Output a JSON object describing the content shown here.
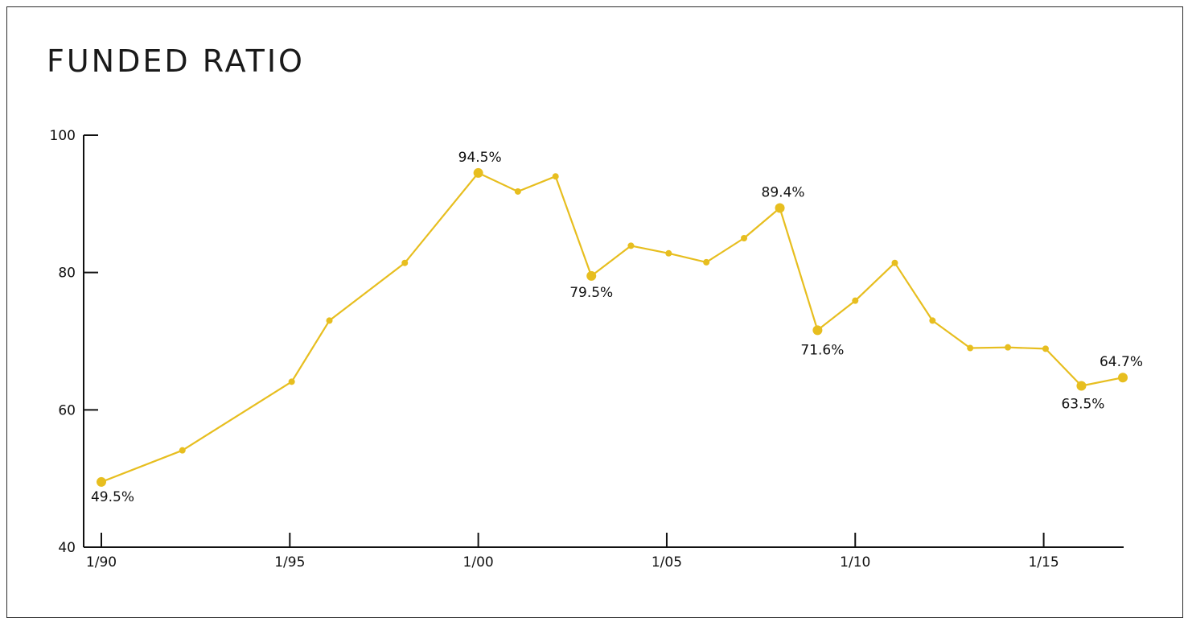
{
  "chart_data": {
    "type": "line",
    "title": "FUNDED RATIO",
    "xlabel": "",
    "ylabel": "",
    "ylim": [
      40,
      100
    ],
    "xlim": [
      1990,
      2017.3
    ],
    "y_ticks": [
      40,
      60,
      80,
      100
    ],
    "x_ticks": [
      {
        "x": 1990,
        "label": "1/90"
      },
      {
        "x": 1995,
        "label": "1/95"
      },
      {
        "x": 2000,
        "label": "1/00"
      },
      {
        "x": 2005,
        "label": "1/05"
      },
      {
        "x": 2010,
        "label": "1/10"
      },
      {
        "x": 2015,
        "label": "1/15"
      }
    ],
    "grid": false,
    "line_color": "#E7BE1F",
    "series": [
      {
        "points": [
          {
            "x": 1990.0,
            "y": 49.5,
            "label": "49.5%"
          },
          {
            "x": 1992.15,
            "y": 54.1
          },
          {
            "x": 1995.05,
            "y": 64.1
          },
          {
            "x": 1996.05,
            "y": 73.0
          },
          {
            "x": 1998.05,
            "y": 81.4
          },
          {
            "x": 2000.0,
            "y": 94.5,
            "label": "94.5%"
          },
          {
            "x": 2001.05,
            "y": 91.8
          },
          {
            "x": 2002.05,
            "y": 94.0
          },
          {
            "x": 2003.0,
            "y": 79.5,
            "label": "79.5%"
          },
          {
            "x": 2004.05,
            "y": 83.9
          },
          {
            "x": 2005.05,
            "y": 82.8
          },
          {
            "x": 2006.05,
            "y": 81.5
          },
          {
            "x": 2007.05,
            "y": 85.0
          },
          {
            "x": 2008.0,
            "y": 89.4,
            "label": "89.4%"
          },
          {
            "x": 2009.0,
            "y": 71.6,
            "label": "71.6%"
          },
          {
            "x": 2010.0,
            "y": 75.9
          },
          {
            "x": 2011.05,
            "y": 81.4
          },
          {
            "x": 2012.05,
            "y": 73.0
          },
          {
            "x": 2013.05,
            "y": 69.0
          },
          {
            "x": 2014.05,
            "y": 69.1
          },
          {
            "x": 2015.05,
            "y": 68.9
          },
          {
            "x": 2016.0,
            "y": 63.5,
            "label": "63.5%"
          },
          {
            "x": 2017.1,
            "y": 64.7,
            "label": "64.7%"
          }
        ]
      }
    ]
  }
}
